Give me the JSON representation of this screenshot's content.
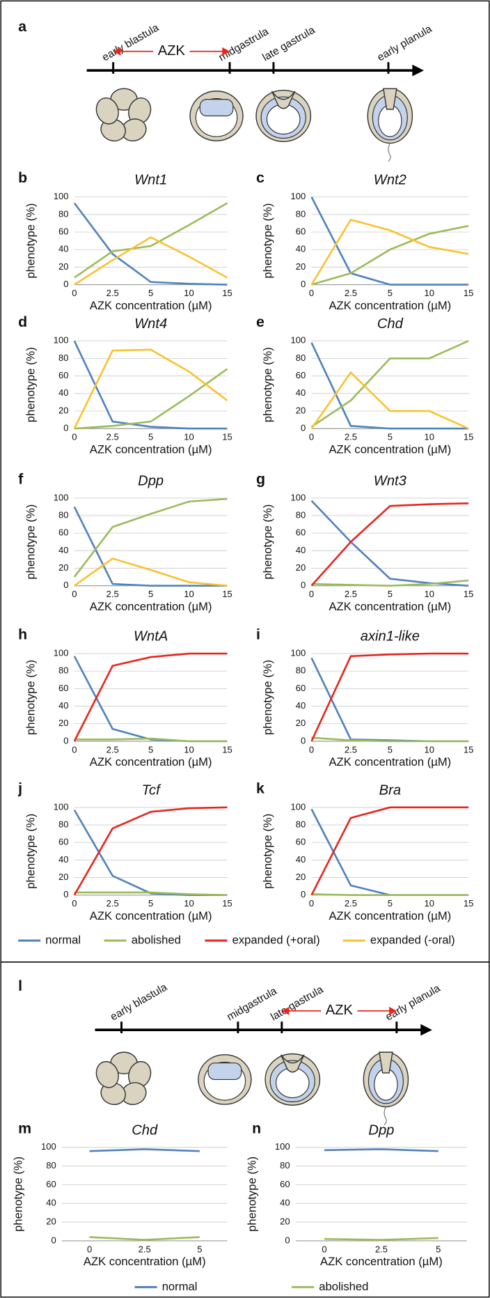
{
  "figure_a": {
    "panel": "a",
    "stages": [
      "early blastula",
      "midgastrula",
      "late gastrula",
      "early planula"
    ],
    "treatment": "AZK"
  },
  "figure_l": {
    "panel": "l",
    "stages": [
      "early blastula",
      "midgastrula",
      "late gastrula",
      "early planula"
    ],
    "treatment": "AZK"
  },
  "chart_data": [
    {
      "type": "line",
      "panel": "b",
      "title": "Wnt1",
      "y_label": "phenotype (%)",
      "x_label": "AZK concentration (µM)",
      "categories": [
        "0",
        "2.5",
        "5",
        "10",
        "15"
      ],
      "ylim": [
        0,
        100
      ],
      "yticks": [
        0,
        20,
        40,
        60,
        80,
        100
      ],
      "grid": true,
      "series": [
        {
          "name": "normal",
          "color": "#4f81bd",
          "values": [
            93,
            35,
            3,
            1,
            0
          ]
        },
        {
          "name": "abolished",
          "color": "#9bbb59",
          "values": [
            8,
            38,
            44,
            68,
            93
          ]
        },
        {
          "name": "expanded (-oral)",
          "color": "#f9c22e",
          "values": [
            0,
            28,
            54,
            32,
            8
          ]
        }
      ]
    },
    {
      "type": "line",
      "panel": "c",
      "title": "Wnt2",
      "y_label": "phenotype (%)",
      "x_label": "AZK concentration (µM)",
      "categories": [
        "0",
        "2.5",
        "5",
        "10",
        "15"
      ],
      "ylim": [
        0,
        100
      ],
      "yticks": [
        0,
        20,
        40,
        60,
        80,
        100
      ],
      "grid": true,
      "series": [
        {
          "name": "normal",
          "color": "#4f81bd",
          "values": [
            100,
            13,
            0,
            0,
            0
          ]
        },
        {
          "name": "abolished",
          "color": "#9bbb59",
          "values": [
            0,
            13,
            40,
            58,
            67
          ]
        },
        {
          "name": "expanded (-oral)",
          "color": "#f9c22e",
          "values": [
            0,
            74,
            62,
            43,
            35
          ]
        }
      ]
    },
    {
      "type": "line",
      "panel": "d",
      "title": "Wnt4",
      "y_label": "phenotype (%)",
      "x_label": "AZK concentration (µM)",
      "categories": [
        "0",
        "2.5",
        "5",
        "10",
        "15"
      ],
      "ylim": [
        0,
        100
      ],
      "yticks": [
        0,
        20,
        40,
        60,
        80,
        100
      ],
      "grid": true,
      "series": [
        {
          "name": "normal",
          "color": "#4f81bd",
          "values": [
            100,
            8,
            2,
            0,
            0
          ]
        },
        {
          "name": "abolished",
          "color": "#9bbb59",
          "values": [
            0,
            3,
            8,
            37,
            68
          ]
        },
        {
          "name": "expanded (-oral)",
          "color": "#f9c22e",
          "values": [
            0,
            89,
            90,
            65,
            32
          ]
        }
      ]
    },
    {
      "type": "line",
      "panel": "e",
      "title": "Chd",
      "y_label": "phenotype (%)",
      "x_label": "AZK concentration (µM)",
      "categories": [
        "0",
        "2.5",
        "5",
        "10",
        "15"
      ],
      "ylim": [
        0,
        100
      ],
      "yticks": [
        0,
        20,
        40,
        60,
        80,
        100
      ],
      "grid": true,
      "series": [
        {
          "name": "normal",
          "color": "#4f81bd",
          "values": [
            98,
            3,
            0,
            0,
            0
          ]
        },
        {
          "name": "abolished",
          "color": "#9bbb59",
          "values": [
            2,
            32,
            80,
            80,
            100
          ]
        },
        {
          "name": "expanded (-oral)",
          "color": "#f9c22e",
          "values": [
            0,
            64,
            20,
            20,
            0
          ]
        }
      ]
    },
    {
      "type": "line",
      "panel": "f",
      "title": "Dpp",
      "y_label": "phenotype (%)",
      "x_label": "AZK concentration (µM)",
      "categories": [
        "0",
        "2.5",
        "5",
        "10",
        "15"
      ],
      "ylim": [
        0,
        100
      ],
      "yticks": [
        0,
        20,
        40,
        60,
        80,
        100
      ],
      "grid": true,
      "series": [
        {
          "name": "normal",
          "color": "#4f81bd",
          "values": [
            90,
            2,
            0,
            0,
            0
          ]
        },
        {
          "name": "abolished",
          "color": "#9bbb59",
          "values": [
            10,
            67,
            82,
            96,
            99
          ]
        },
        {
          "name": "expanded (-oral)",
          "color": "#f9c22e",
          "values": [
            0,
            31,
            18,
            4,
            0
          ]
        }
      ]
    },
    {
      "type": "line",
      "panel": "g",
      "title": "Wnt3",
      "y_label": "phenotype (%)",
      "x_label": "AZK concentration (µM)",
      "categories": [
        "0",
        "2.5",
        "5",
        "10",
        "15"
      ],
      "ylim": [
        0,
        100
      ],
      "yticks": [
        0,
        20,
        40,
        60,
        80,
        100
      ],
      "grid": true,
      "series": [
        {
          "name": "normal",
          "color": "#4f81bd",
          "values": [
            97,
            50,
            8,
            3,
            0
          ]
        },
        {
          "name": "abolished",
          "color": "#9bbb59",
          "values": [
            2,
            1,
            0,
            2,
            6
          ]
        },
        {
          "name": "expanded (+oral)",
          "color": "#e8251c",
          "values": [
            0,
            50,
            91,
            93,
            94
          ]
        }
      ]
    },
    {
      "type": "line",
      "panel": "h",
      "title": "WntA",
      "y_label": "phenotype (%)",
      "x_label": "AZK concentration (µM)",
      "categories": [
        "0",
        "2.5",
        "5",
        "10",
        "15"
      ],
      "ylim": [
        0,
        100
      ],
      "yticks": [
        0,
        20,
        40,
        60,
        80,
        100
      ],
      "grid": true,
      "series": [
        {
          "name": "normal",
          "color": "#4f81bd",
          "values": [
            97,
            14,
            2,
            0,
            0
          ]
        },
        {
          "name": "abolished",
          "color": "#9bbb59",
          "values": [
            2,
            2,
            3,
            0,
            0
          ]
        },
        {
          "name": "expanded (+oral)",
          "color": "#e8251c",
          "values": [
            0,
            86,
            96,
            100,
            100
          ]
        }
      ]
    },
    {
      "type": "line",
      "panel": "i",
      "title": "axin1-like",
      "y_label": "phenotype (%)",
      "x_label": "AZK concentration (µM)",
      "categories": [
        "0",
        "2.5",
        "5",
        "10",
        "15"
      ],
      "ylim": [
        0,
        100
      ],
      "yticks": [
        0,
        20,
        40,
        60,
        80,
        100
      ],
      "grid": true,
      "series": [
        {
          "name": "normal",
          "color": "#4f81bd",
          "values": [
            95,
            2,
            1,
            0,
            0
          ]
        },
        {
          "name": "abolished",
          "color": "#9bbb59",
          "values": [
            4,
            1,
            0,
            0,
            0
          ]
        },
        {
          "name": "expanded (+oral)",
          "color": "#e8251c",
          "values": [
            0,
            97,
            99,
            100,
            100
          ]
        }
      ]
    },
    {
      "type": "line",
      "panel": "j",
      "title": "Tcf",
      "y_label": "phenotype (%)",
      "x_label": "AZK concentration (µM)",
      "categories": [
        "0",
        "2.5",
        "5",
        "10",
        "15"
      ],
      "ylim": [
        0,
        100
      ],
      "yticks": [
        0,
        20,
        40,
        60,
        80,
        100
      ],
      "grid": true,
      "series": [
        {
          "name": "normal",
          "color": "#4f81bd",
          "values": [
            97,
            22,
            2,
            0,
            0
          ]
        },
        {
          "name": "abolished",
          "color": "#9bbb59",
          "values": [
            3,
            3,
            3,
            1,
            0
          ]
        },
        {
          "name": "expanded (+oral)",
          "color": "#e8251c",
          "values": [
            0,
            76,
            95,
            99,
            100
          ]
        }
      ]
    },
    {
      "type": "line",
      "panel": "k",
      "title": "Bra",
      "y_label": "phenotype (%)",
      "x_label": "AZK concentration (µM)",
      "categories": [
        "0",
        "2.5",
        "5",
        "10",
        "15"
      ],
      "ylim": [
        0,
        100
      ],
      "yticks": [
        0,
        20,
        40,
        60,
        80,
        100
      ],
      "grid": true,
      "series": [
        {
          "name": "normal",
          "color": "#4f81bd",
          "values": [
            98,
            11,
            0,
            0,
            0
          ]
        },
        {
          "name": "abolished",
          "color": "#9bbb59",
          "values": [
            1,
            0,
            0,
            0,
            0
          ]
        },
        {
          "name": "expanded (+oral)",
          "color": "#e8251c",
          "values": [
            0,
            88,
            100,
            100,
            100
          ]
        }
      ]
    },
    {
      "type": "line",
      "panel": "m",
      "title": "Chd",
      "y_label": "phenotype (%)",
      "x_label": "AZK concentration (µM)",
      "categories": [
        "0",
        "2.5",
        "5"
      ],
      "ylim": [
        0,
        100
      ],
      "yticks": [
        0,
        20,
        40,
        60,
        80,
        100
      ],
      "grid": true,
      "series": [
        {
          "name": "normal",
          "color": "#4f81bd",
          "values": [
            96,
            98,
            96
          ]
        },
        {
          "name": "abolished",
          "color": "#9bbb59",
          "values": [
            4,
            1,
            4
          ]
        }
      ]
    },
    {
      "type": "line",
      "panel": "n",
      "title": "Dpp",
      "y_label": "phenotype (%)",
      "x_label": "AZK concentration (µM)",
      "categories": [
        "0",
        "2.5",
        "5"
      ],
      "ylim": [
        0,
        100
      ],
      "yticks": [
        0,
        20,
        40,
        60,
        80,
        100
      ],
      "grid": true,
      "series": [
        {
          "name": "normal",
          "color": "#4f81bd",
          "values": [
            97,
            98,
            96
          ]
        },
        {
          "name": "abolished",
          "color": "#9bbb59",
          "values": [
            2,
            1,
            3
          ]
        }
      ]
    }
  ],
  "legend_top": [
    {
      "name": "normal",
      "color": "#4f81bd"
    },
    {
      "name": "abolished",
      "color": "#9bbb59"
    },
    {
      "name": "expanded (+oral)",
      "color": "#e8251c"
    },
    {
      "name": "expanded (-oral)",
      "color": "#f9c22e"
    }
  ],
  "legend_bottom": [
    {
      "name": "normal",
      "color": "#4f81bd"
    },
    {
      "name": "abolished",
      "color": "#9bbb59"
    }
  ]
}
